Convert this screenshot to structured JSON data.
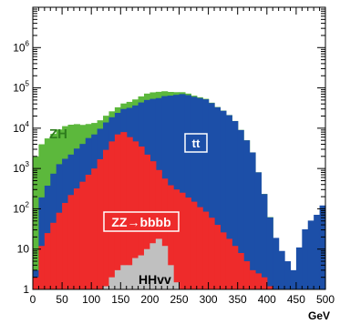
{
  "chart_data": {
    "type": "area",
    "stacked": true,
    "log_y": true,
    "xlim": [
      0,
      500
    ],
    "ylim": [
      1,
      10000000
    ],
    "x_ticks": [
      "0",
      "50",
      "100",
      "150",
      "200",
      "250",
      "300",
      "350",
      "400",
      "450",
      "500"
    ],
    "y_ticks": [
      {
        "value": 1,
        "base": "1",
        "exp": ""
      },
      {
        "value": 10,
        "base": "10",
        "exp": ""
      },
      {
        "value": 100,
        "base": "10",
        "exp": "2"
      },
      {
        "value": 1000,
        "base": "10",
        "exp": "3"
      },
      {
        "value": 10000,
        "base": "10",
        "exp": "4"
      },
      {
        "value": 100000,
        "base": "10",
        "exp": "5"
      },
      {
        "value": 1000000,
        "base": "10",
        "exp": "6"
      }
    ],
    "x_unit": "GeV",
    "bin_width": 10,
    "x": [
      5,
      15,
      25,
      35,
      45,
      55,
      65,
      75,
      85,
      95,
      105,
      115,
      125,
      135,
      145,
      155,
      165,
      175,
      185,
      195,
      205,
      215,
      225,
      235,
      245,
      255,
      265,
      275,
      285,
      295,
      305,
      315,
      325,
      335,
      345,
      355,
      365,
      375,
      385,
      395,
      405,
      415,
      425,
      435,
      445,
      455,
      465,
      475,
      485,
      495
    ],
    "series": [
      {
        "name": "HHvv",
        "color": "#c0c0c0",
        "values": [
          0,
          0,
          0,
          0,
          0,
          0,
          0,
          0,
          0,
          0,
          0,
          0,
          1.2,
          2,
          3,
          4,
          4,
          6,
          7,
          10,
          14,
          18,
          12,
          4,
          1.5,
          1,
          0,
          0,
          0,
          0,
          0,
          0,
          0,
          0,
          0,
          0,
          0,
          0,
          0,
          0,
          0,
          0,
          0,
          0,
          0,
          0,
          0,
          0,
          0,
          0
        ]
      },
      {
        "name": "ZZ→bbbb",
        "color": "#ee2b2b",
        "values": [
          2,
          12,
          25,
          45,
          80,
          140,
          220,
          320,
          470,
          700,
          1000,
          1700,
          2900,
          4700,
          7000,
          8000,
          6000,
          4700,
          3500,
          2200,
          1500,
          900,
          550,
          380,
          300,
          250,
          190,
          150,
          110,
          85,
          60,
          40,
          26,
          18,
          12,
          8,
          5,
          3,
          2.5,
          2,
          1.2,
          1,
          1,
          1,
          1,
          1,
          1,
          1,
          1,
          1
        ]
      },
      {
        "name": "tt",
        "color": "#1c4fa8",
        "values": [
          1,
          180,
          350,
          700,
          1200,
          1600,
          2000,
          2800,
          3600,
          5000,
          6000,
          8000,
          11000,
          14000,
          17000,
          22000,
          26000,
          32000,
          40000,
          48000,
          52000,
          55000,
          62000,
          64000,
          67000,
          70000,
          66000,
          60000,
          56000,
          52000,
          42000,
          33000,
          27000,
          21000,
          15000,
          9000,
          5000,
          2500,
          800,
          230,
          60,
          18,
          8,
          4,
          2,
          10,
          30,
          50,
          70,
          120
        ]
      },
      {
        "name": "ZH",
        "color": "#5cb83c",
        "values": [
          2000,
          3800,
          5200,
          6500,
          8000,
          9500,
          10000,
          9500,
          8000,
          7000,
          6500,
          6000,
          6500,
          7500,
          9000,
          11000,
          13000,
          15000,
          18000,
          22000,
          24000,
          24000,
          20000,
          15000,
          11000,
          8000,
          6000,
          4000,
          2500,
          1500,
          900,
          500,
          300,
          200,
          100,
          50,
          20,
          8,
          4,
          2,
          1,
          0,
          0,
          0,
          0,
          0,
          0,
          0,
          0,
          0
        ]
      }
    ],
    "annotations": {
      "zh": "ZH",
      "tt": "tt",
      "zz": "ZZ→bbbb",
      "hh": "HHvv"
    }
  }
}
